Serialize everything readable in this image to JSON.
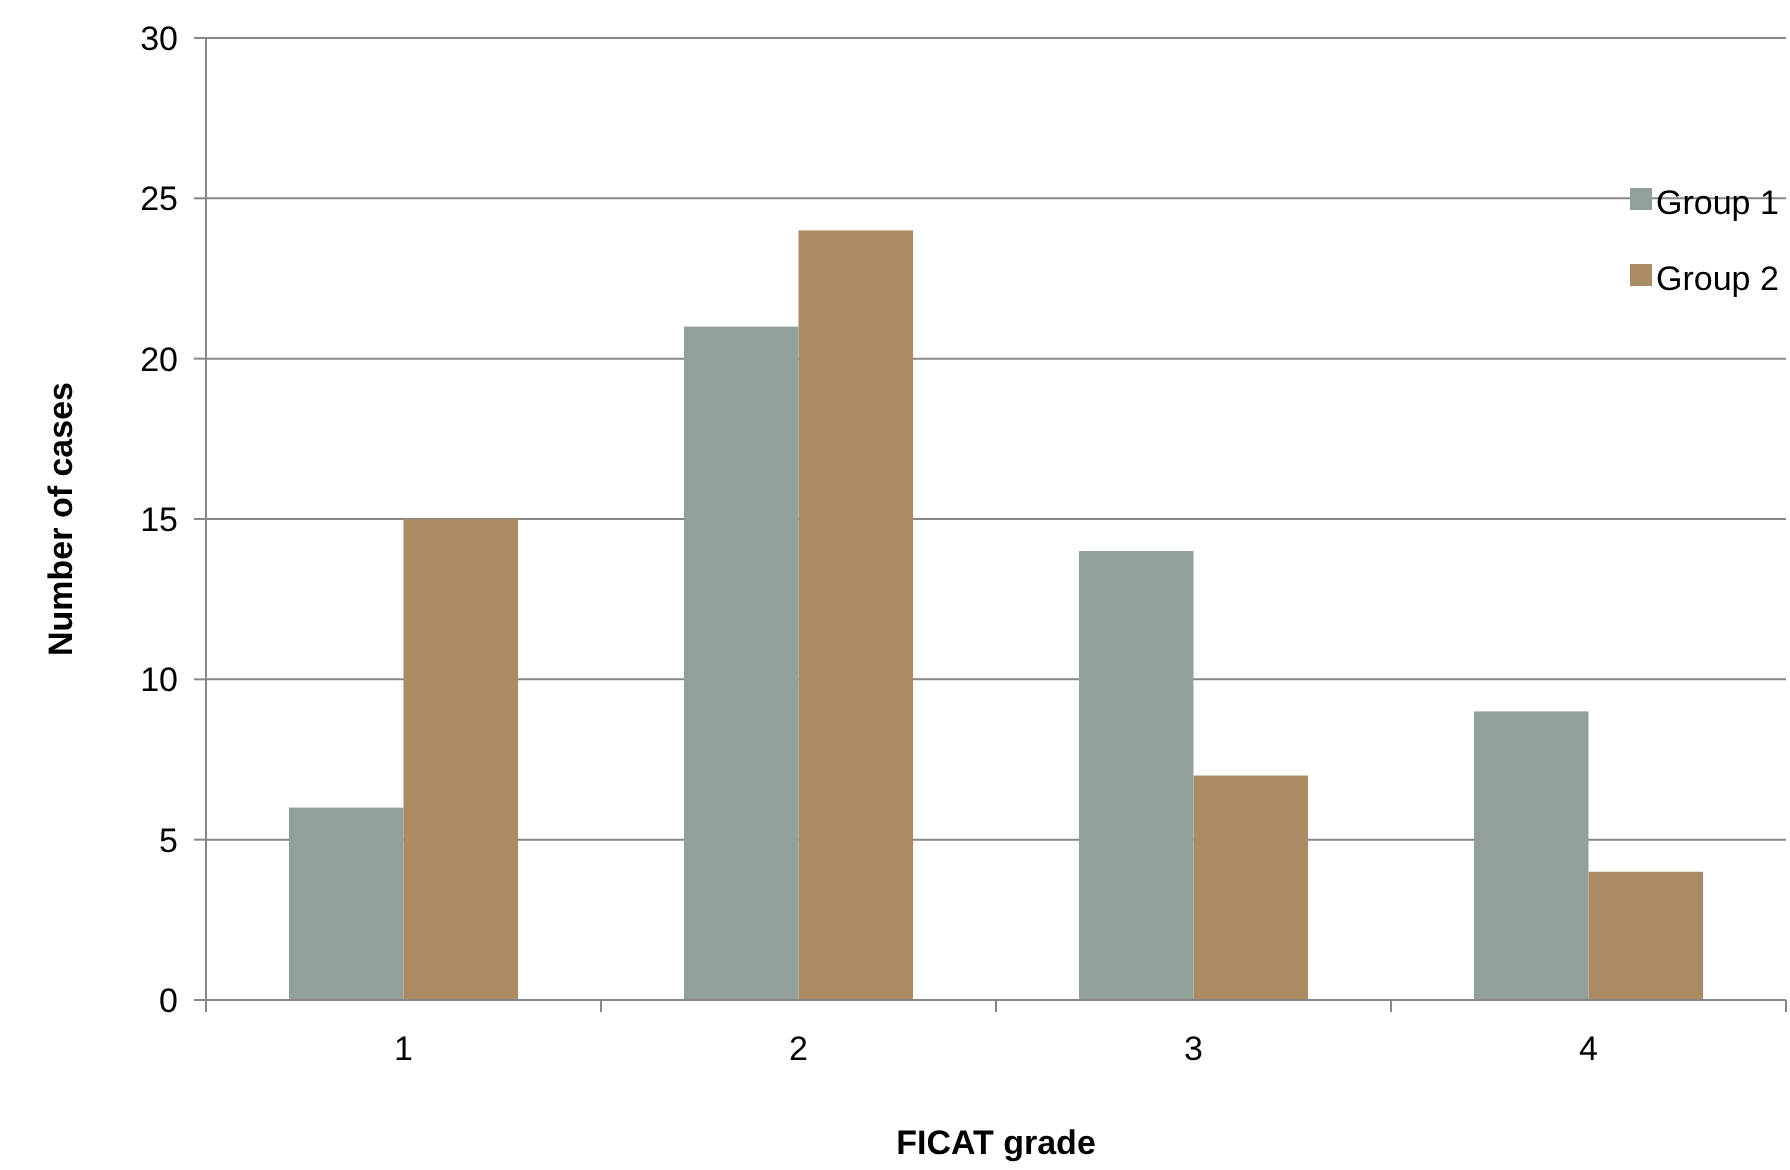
{
  "chart_data": {
    "type": "bar",
    "xlabel": "FICAT grade",
    "ylabel": "Number of cases",
    "categories": [
      "1",
      "2",
      "3",
      "4"
    ],
    "series": [
      {
        "name": "Group 1",
        "color": "#91a199",
        "values": [
          6,
          21,
          14,
          9
        ]
      },
      {
        "name": "Group 2",
        "color": "#ab8b63",
        "values": [
          15,
          24,
          7,
          4
        ]
      }
    ],
    "ylim": [
      0,
      30
    ],
    "yticks": [
      0,
      5,
      10,
      15,
      20,
      25,
      30
    ],
    "grid": "y",
    "legend": "top right"
  }
}
